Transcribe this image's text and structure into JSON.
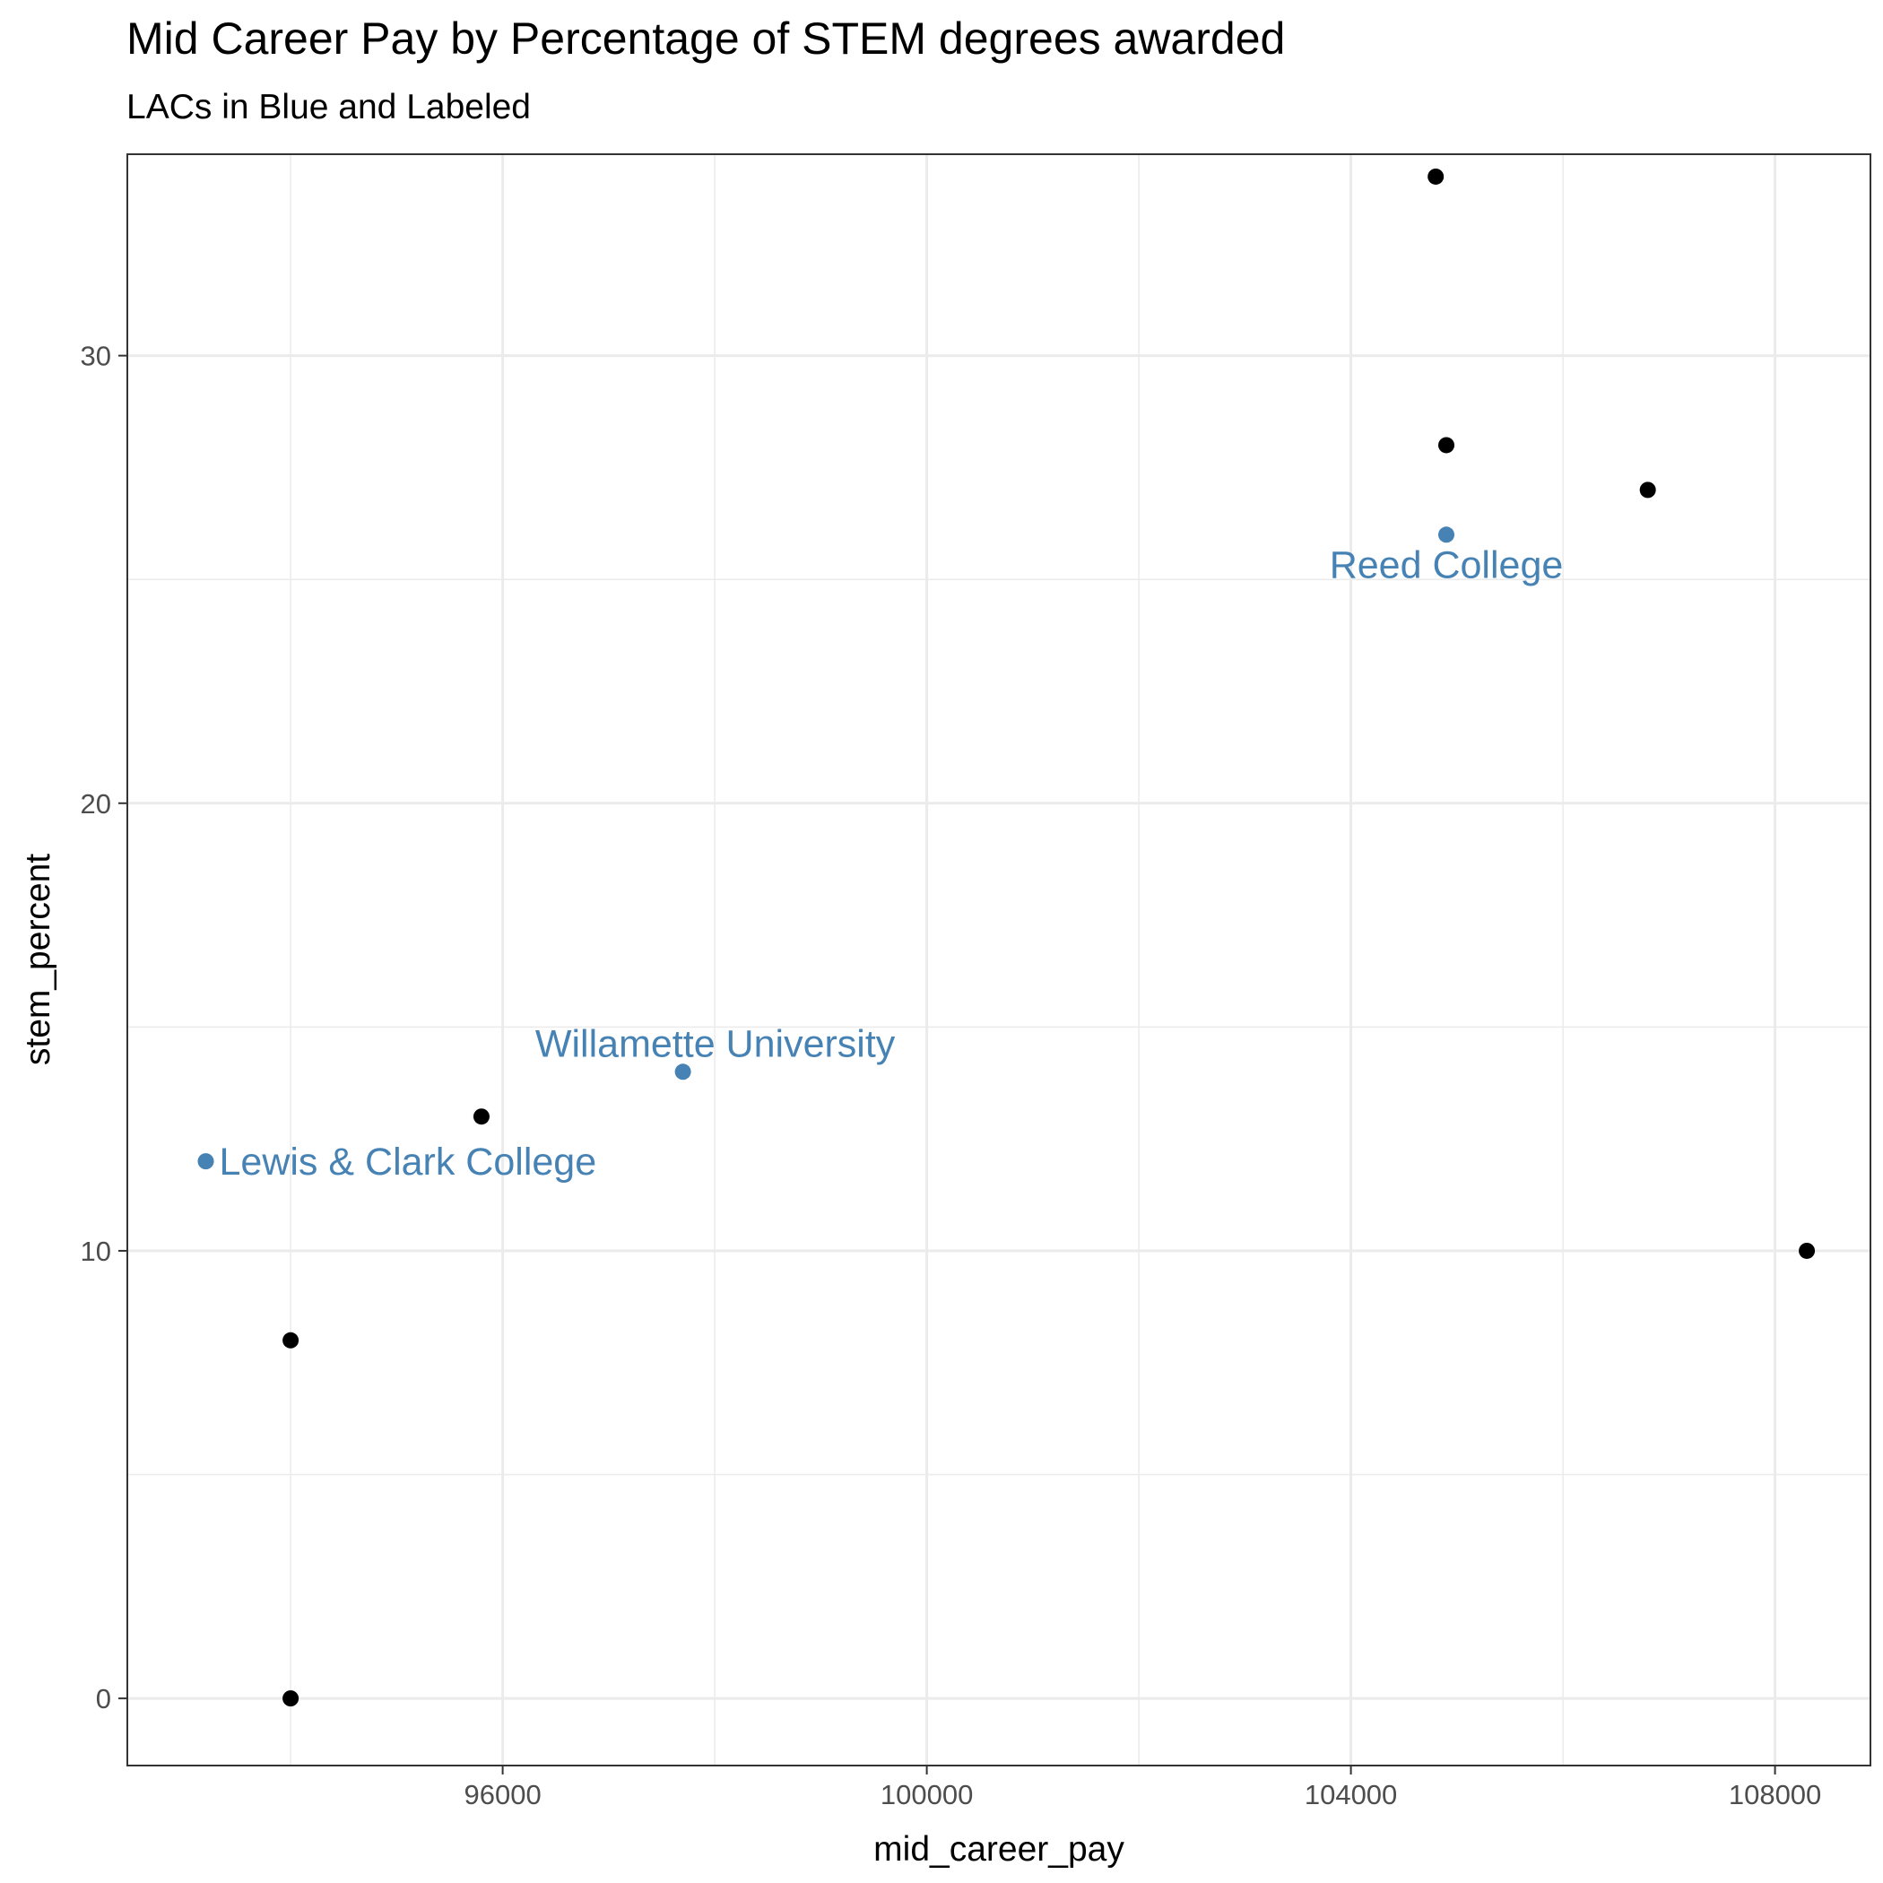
{
  "chart_data": {
    "type": "scatter",
    "title": "Mid Career Pay by Percentage of STEM degrees awarded",
    "subtitle": "LACs in Blue and Labeled",
    "xlabel": "mid_career_pay",
    "ylabel": "stem_percent",
    "xlim": [
      92460,
      108900
    ],
    "ylim": [
      -1.5,
      34.5
    ],
    "x_major_ticks": [
      96000,
      100000,
      104000,
      108000
    ],
    "x_minor_ticks": [
      94000,
      98000,
      102000,
      106000
    ],
    "y_major_ticks": [
      0,
      10,
      20,
      30
    ],
    "y_minor_ticks": [
      5,
      15,
      25
    ],
    "x_tick_labels": [
      "96000",
      "100000",
      "104000",
      "108000"
    ],
    "y_tick_labels": [
      "0",
      "10",
      "20",
      "30"
    ],
    "grid": true,
    "colors": {
      "lac": "#4682b4",
      "other": "#000000"
    },
    "points": [
      {
        "x": 94000,
        "y": 0,
        "group": "other"
      },
      {
        "x": 94000,
        "y": 8,
        "group": "other"
      },
      {
        "x": 95800,
        "y": 13,
        "group": "other"
      },
      {
        "x": 104800,
        "y": 34,
        "group": "other"
      },
      {
        "x": 104900,
        "y": 28,
        "group": "other"
      },
      {
        "x": 106800,
        "y": 27,
        "group": "other"
      },
      {
        "x": 108300,
        "y": 10,
        "group": "other"
      },
      {
        "x": 93200,
        "y": 12,
        "group": "lac",
        "label": "Lewis & Clark College"
      },
      {
        "x": 97700,
        "y": 14,
        "group": "lac",
        "label": "Willamette University"
      },
      {
        "x": 104900,
        "y": 26,
        "group": "lac",
        "label": "Reed College"
      }
    ]
  }
}
